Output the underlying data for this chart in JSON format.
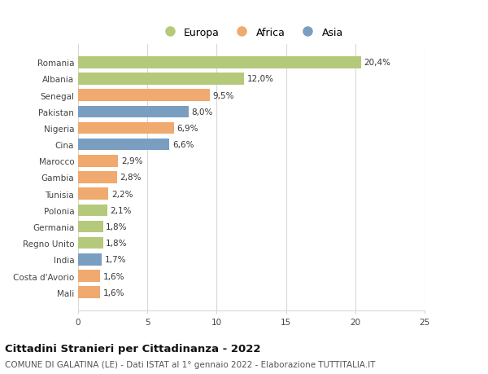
{
  "categories": [
    "Romania",
    "Albania",
    "Senegal",
    "Pakistan",
    "Nigeria",
    "Cina",
    "Marocco",
    "Gambia",
    "Tunisia",
    "Polonia",
    "Germania",
    "Regno Unito",
    "India",
    "Costa d'Avorio",
    "Mali"
  ],
  "values": [
    20.4,
    12.0,
    9.5,
    8.0,
    6.9,
    6.6,
    2.9,
    2.8,
    2.2,
    2.1,
    1.8,
    1.8,
    1.7,
    1.6,
    1.6
  ],
  "labels": [
    "20,4%",
    "12,0%",
    "9,5%",
    "8,0%",
    "6,9%",
    "6,6%",
    "2,9%",
    "2,8%",
    "2,2%",
    "2,1%",
    "1,8%",
    "1,8%",
    "1,7%",
    "1,6%",
    "1,6%"
  ],
  "continent": [
    "Europa",
    "Europa",
    "Africa",
    "Asia",
    "Africa",
    "Asia",
    "Africa",
    "Africa",
    "Africa",
    "Europa",
    "Europa",
    "Europa",
    "Asia",
    "Africa",
    "Africa"
  ],
  "colors": {
    "Europa": "#b5c97a",
    "Africa": "#f0a96e",
    "Asia": "#7a9ec0"
  },
  "legend_labels": [
    "Europa",
    "Africa",
    "Asia"
  ],
  "xlim": [
    0,
    25
  ],
  "xticks": [
    0,
    5,
    10,
    15,
    20,
    25
  ],
  "title": "Cittadini Stranieri per Cittadinanza - 2022",
  "subtitle": "COMUNE DI GALATINA (LE) - Dati ISTAT al 1° gennaio 2022 - Elaborazione TUTTITALIA.IT",
  "title_fontsize": 9.5,
  "subtitle_fontsize": 7.5,
  "label_fontsize": 7.5,
  "tick_fontsize": 7.5,
  "legend_fontsize": 9,
  "background_color": "#ffffff",
  "grid_color": "#d8d8d8",
  "bar_height": 0.72
}
